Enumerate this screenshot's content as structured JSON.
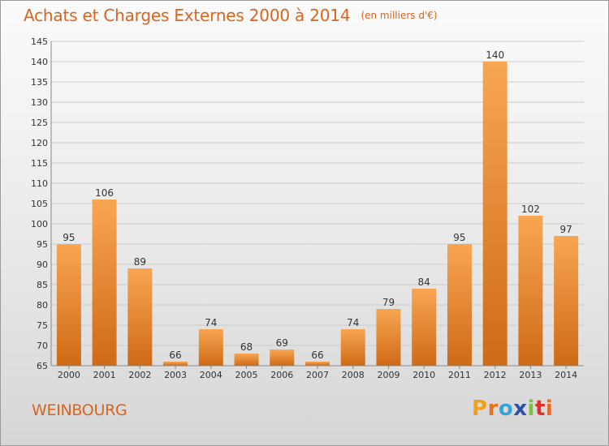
{
  "header": {
    "title": "Achats et Charges Externes 2000 à 2014",
    "unit": "(en milliers d'€)"
  },
  "footer": {
    "commune": "WEINBOURG",
    "brand": "Proxiti",
    "brand_letters": [
      "P",
      "r",
      "o",
      "x",
      "i",
      "t",
      "i"
    ],
    "brand_colors": [
      "#f0a020",
      "#e8731a",
      "#33a3d8",
      "#2d4fa5",
      "#7cc142",
      "#d8322c",
      "#e86a24"
    ]
  },
  "chart_data": {
    "type": "bar",
    "title": "Achats et Charges Externes 2000 à 2014",
    "subtitle": "(en milliers d'€)",
    "categories": [
      "2000",
      "2001",
      "2002",
      "2003",
      "2004",
      "2005",
      "2006",
      "2007",
      "2008",
      "2009",
      "2010",
      "2011",
      "2012",
      "2013",
      "2014"
    ],
    "values": [
      95,
      106,
      89,
      66,
      74,
      68,
      69,
      66,
      74,
      79,
      84,
      95,
      140,
      102,
      97
    ],
    "ylim": [
      65,
      145
    ],
    "yticks": [
      65,
      70,
      75,
      80,
      85,
      90,
      95,
      100,
      105,
      110,
      115,
      120,
      125,
      130,
      135,
      140,
      145
    ],
    "grid": true,
    "colors": {
      "bar_light": "#f8a652",
      "bar_dark": "#cf6a16",
      "grid": "#cccccc",
      "text": "#333333",
      "accent": "#d9641e"
    }
  }
}
